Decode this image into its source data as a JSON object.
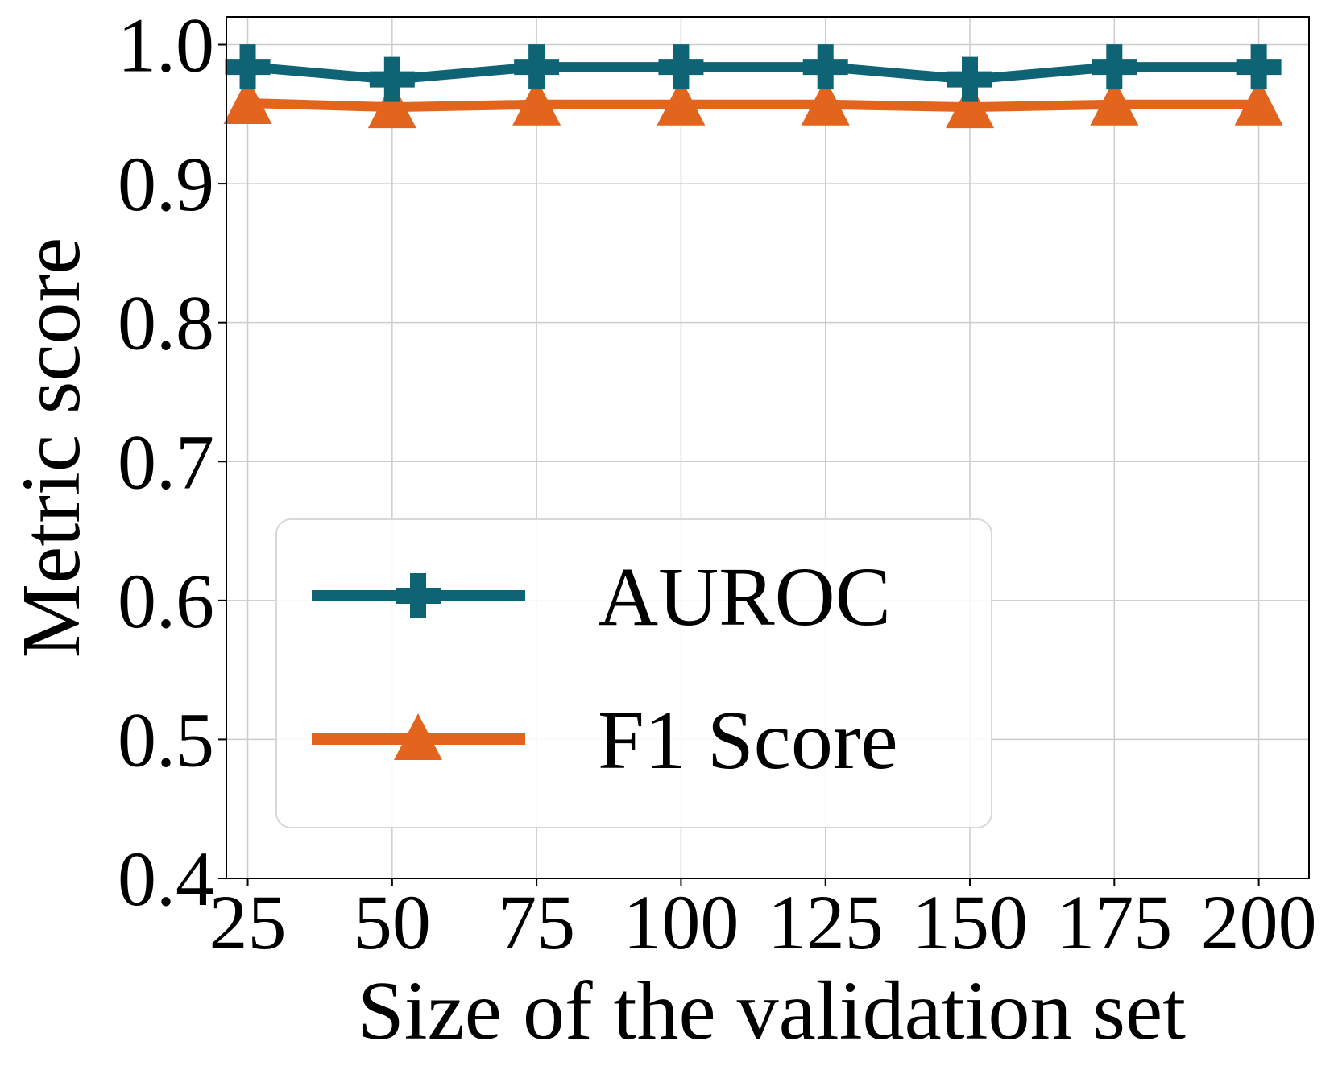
{
  "chart_data": {
    "type": "line",
    "xlabel": "Size of the validation set",
    "ylabel": "Metric score",
    "x": [
      25,
      50,
      75,
      100,
      125,
      150,
      175,
      200
    ],
    "x_tick_labels": [
      "25",
      "50",
      "75",
      "100",
      "125",
      "150",
      "175",
      "200"
    ],
    "ylim": [
      0.4,
      1.02
    ],
    "y_ticks": [
      0.4,
      0.5,
      0.6,
      0.7,
      0.8,
      0.9,
      1.0
    ],
    "y_tick_labels": [
      "0.4",
      "0.5",
      "0.6",
      "0.7",
      "0.8",
      "0.9",
      "1.0"
    ],
    "grid": true,
    "legend_position": "lower-left",
    "series": [
      {
        "name": "AUROC",
        "color": "#0e6374",
        "marker": "plus",
        "values": [
          0.984,
          0.975,
          0.984,
          0.984,
          0.984,
          0.975,
          0.984,
          0.984
        ]
      },
      {
        "name": "F1 Score",
        "color": "#e3651d",
        "marker": "triangle",
        "values": [
          0.958,
          0.955,
          0.957,
          0.957,
          0.957,
          0.955,
          0.957,
          0.957
        ]
      }
    ]
  }
}
